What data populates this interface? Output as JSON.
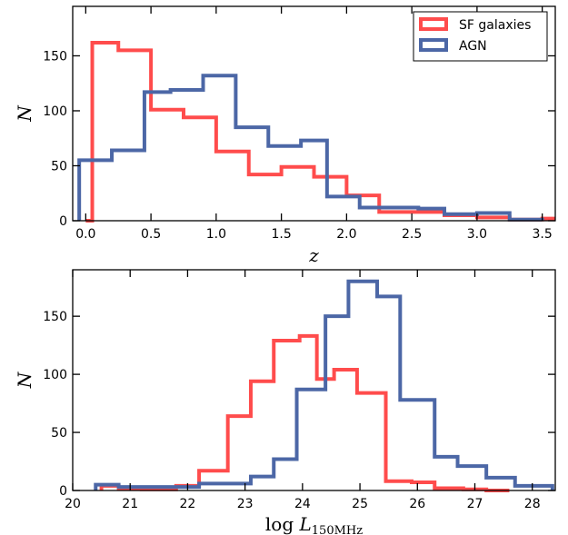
{
  "chart_data": [
    {
      "type": "histogram",
      "xlabel": "z",
      "ylabel": "N",
      "xlim": [
        -0.1,
        3.6
      ],
      "ylim": [
        0,
        195
      ],
      "xticks": [
        "0.0",
        "0.5",
        "1.0",
        "1.5",
        "2.0",
        "2.5",
        "3.0",
        "3.5"
      ],
      "yticks": [
        "0",
        "50",
        "100",
        "150"
      ],
      "legend": {
        "placement": "top-right"
      },
      "series": [
        {
          "name": "SF galaxies",
          "color": "#ff4c4c",
          "edges": [
            0.0,
            0.05,
            0.25,
            0.5,
            0.75,
            1.0,
            1.25,
            1.5,
            1.75,
            2.0,
            2.25,
            2.5,
            2.75,
            3.0,
            3.25,
            3.5,
            3.6
          ],
          "counts": [
            0,
            162,
            155,
            101,
            94,
            63,
            42,
            49,
            40,
            23,
            8,
            8,
            5,
            3,
            1,
            2
          ]
        },
        {
          "name": "AGN",
          "color": "#4c67a6",
          "edges": [
            -0.05,
            0.2,
            0.45,
            0.65,
            0.9,
            1.15,
            1.4,
            1.65,
            1.85,
            2.1,
            2.3,
            2.55,
            2.75,
            3.0,
            3.25,
            3.5
          ],
          "counts": [
            55,
            64,
            117,
            119,
            132,
            85,
            68,
            73,
            22,
            12,
            12,
            11,
            6,
            7,
            1
          ]
        }
      ]
    },
    {
      "type": "histogram",
      "xlabel": "log L",
      "xlabel_sub": "150MHz",
      "ylabel": "N",
      "xlim": [
        20,
        28.4
      ],
      "ylim": [
        0,
        190
      ],
      "xticks": [
        "20",
        "21",
        "22",
        "23",
        "24",
        "25",
        "26",
        "27",
        "28"
      ],
      "yticks": [
        "0",
        "50",
        "100",
        "150"
      ],
      "series": [
        {
          "name": "SF galaxies",
          "color": "#ff4c4c",
          "edges": [
            20.5,
            20.8,
            21.2,
            21.8,
            22.2,
            22.7,
            23.1,
            23.5,
            23.95,
            24.25,
            24.55,
            24.95,
            25.45,
            25.9,
            26.3,
            26.8,
            27.2,
            27.6
          ],
          "counts": [
            4,
            2,
            1,
            4,
            17,
            64,
            94,
            129,
            133,
            96,
            104,
            84,
            8,
            7,
            2,
            1,
            0
          ]
        },
        {
          "name": "AGN",
          "color": "#4c67a6",
          "edges": [
            20.4,
            20.8,
            21.5,
            22.2,
            22.7,
            23.1,
            23.5,
            23.9,
            24.4,
            24.8,
            25.3,
            25.7,
            26.3,
            26.7,
            27.2,
            27.7,
            28.35
          ],
          "counts": [
            5,
            3,
            3,
            6,
            6,
            12,
            27,
            87,
            150,
            180,
            167,
            78,
            29,
            21,
            11,
            4
          ]
        }
      ]
    }
  ]
}
